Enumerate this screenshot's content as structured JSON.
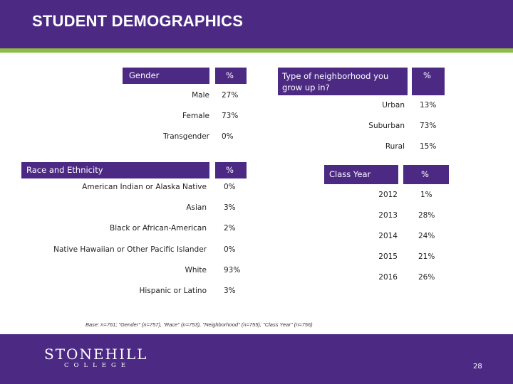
{
  "title": "STUDENT DEMOGRAPHICS",
  "colors": {
    "brand_purple": "#4c2a84",
    "accent_green": "#8dbb45"
  },
  "gender": {
    "header_label": "Gender",
    "header_pct": "%",
    "rows": [
      {
        "label": "Male",
        "value": "27%"
      },
      {
        "label": "Female",
        "value": "73%"
      },
      {
        "label": "Transgender",
        "value": "0%"
      }
    ]
  },
  "race": {
    "header_label": "Race and Ethnicity",
    "header_pct": "%",
    "rows": [
      {
        "label": "American Indian or Alaska Native",
        "value": "0%"
      },
      {
        "label": "Asian",
        "value": "3%"
      },
      {
        "label": "Black or African-American",
        "value": "2%"
      },
      {
        "label": "Native Hawaiian or Other Pacific Islander",
        "value": "0%"
      },
      {
        "label": "White",
        "value": "93%"
      },
      {
        "label": "Hispanic or Latino",
        "value": "3%"
      }
    ]
  },
  "neighborhood": {
    "header_label": "Type of neighborhood you grow up in?",
    "header_pct": "%",
    "rows": [
      {
        "label": "Urban",
        "value": "13%"
      },
      {
        "label": "Suburban",
        "value": "73%"
      },
      {
        "label": "Rural",
        "value": "15%"
      }
    ]
  },
  "class_year": {
    "header_label": "Class Year",
    "header_pct": "%",
    "rows": [
      {
        "label": "2012",
        "value": "1%"
      },
      {
        "label": "2013",
        "value": "28%"
      },
      {
        "label": "2014",
        "value": "24%"
      },
      {
        "label": "2015",
        "value": "21%"
      },
      {
        "label": "2016",
        "value": "26%"
      }
    ]
  },
  "base_note": "Base: n=761; \"Gender\" (n=757), \"Race\" (n=753), \"Neighborhood\" (n=755); \"Class Year\" (n=756)",
  "footer": {
    "logo_name": "STONEHILL",
    "logo_sub": "COLLEGE",
    "page_number": "28"
  }
}
